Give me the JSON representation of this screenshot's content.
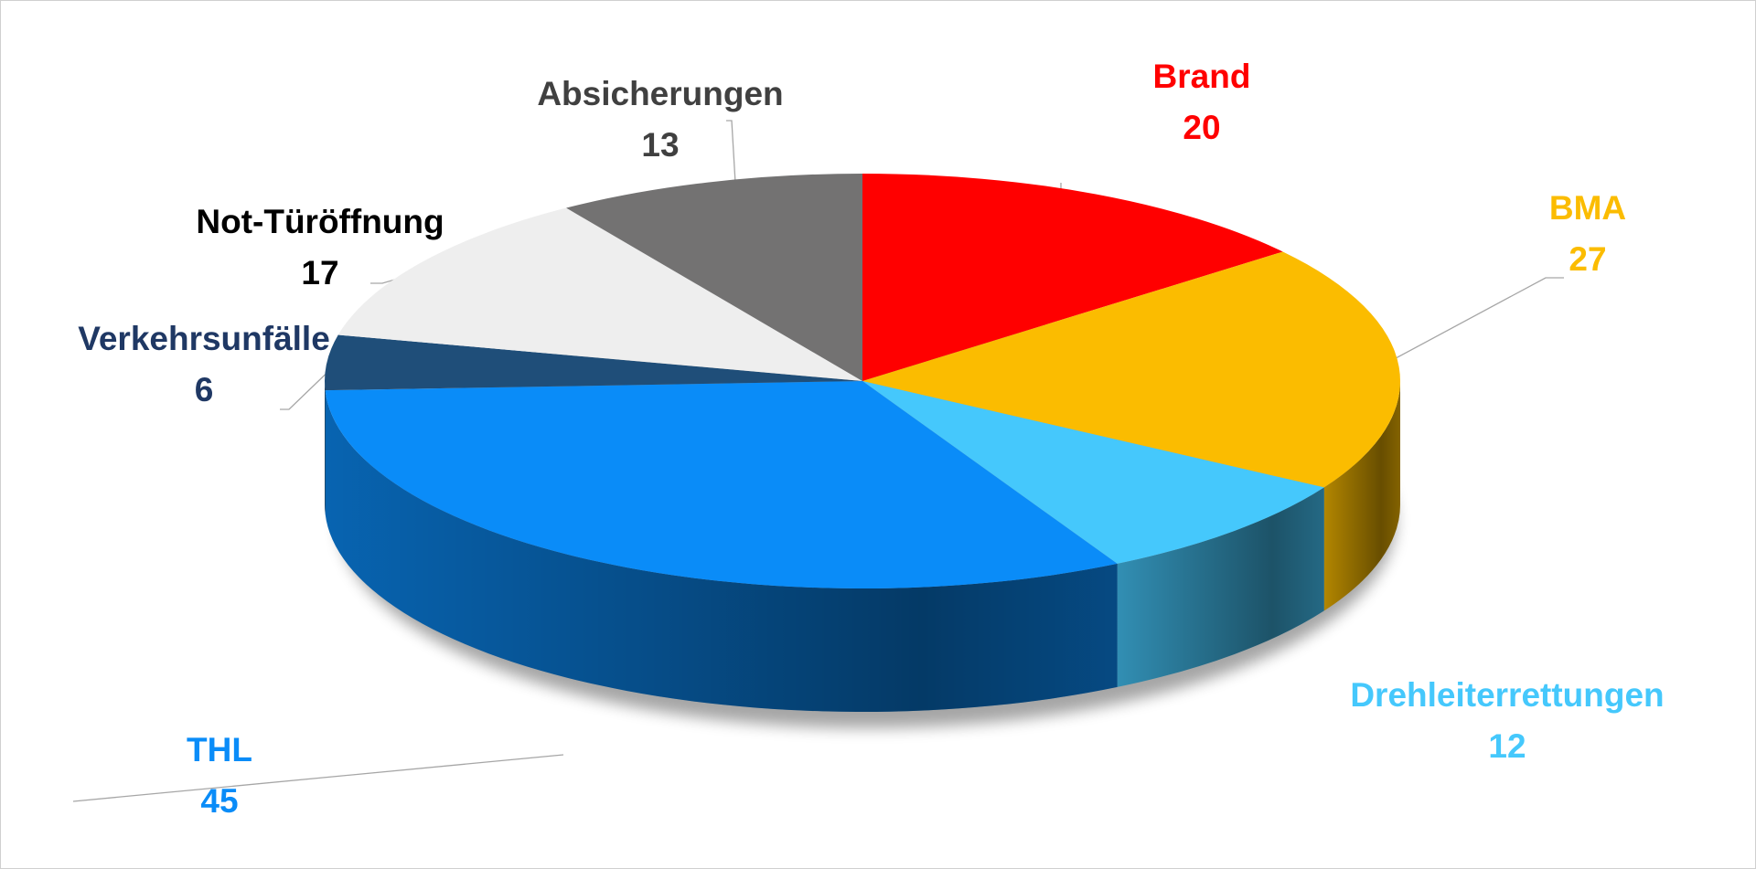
{
  "chart_data": {
    "type": "pie3d",
    "categories": [
      "Brand",
      "BMA",
      "Drehleiterrettungen",
      "THL",
      "Verkehrsunfälle",
      "Not-Türöffnung",
      "Absicherungen"
    ],
    "values": [
      20,
      27,
      12,
      45,
      6,
      17,
      13
    ],
    "colors": [
      "#ff0000",
      "#fbbc00",
      "#45c8fc",
      "#0a8cf8",
      "#1f4e79",
      "#eeeeee",
      "#737272"
    ],
    "label_colors": [
      "#ff0000",
      "#fbbc00",
      "#45c8fc",
      "#0a8cf8",
      "#1f3864",
      "#000000",
      "#404040"
    ]
  }
}
